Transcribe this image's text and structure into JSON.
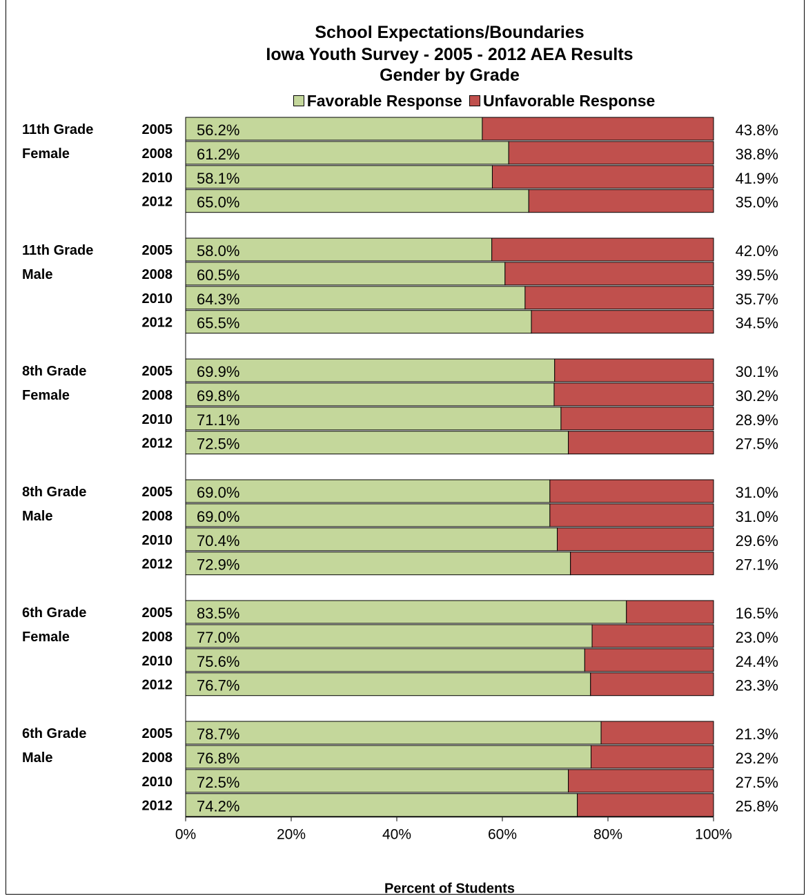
{
  "chart_data": {
    "type": "bar",
    "stacked": true,
    "orientation": "horizontal",
    "title_lines": [
      "School Expectations/Boundaries",
      "Iowa Youth Survey - 2005 - 2012 AEA Results",
      "Gender by Grade"
    ],
    "xlabel": "Percent of Students",
    "xlim": [
      0,
      100
    ],
    "x_ticks": [
      "0%",
      "20%",
      "40%",
      "60%",
      "80%",
      "100%"
    ],
    "legend_position": "top",
    "series": [
      {
        "name": "Favorable Response",
        "color": "#C4D79B"
      },
      {
        "name": "Unfavorable Response",
        "color": "#C0504D"
      }
    ],
    "groups": [
      {
        "label_line1": "11th Grade",
        "label_line2": "Female",
        "rows": [
          {
            "year": "2005",
            "favorable": 56.2,
            "unfavorable": 43.8,
            "fav_label": "56.2%",
            "unfav_label": "43.8%"
          },
          {
            "year": "2008",
            "favorable": 61.2,
            "unfavorable": 38.8,
            "fav_label": "61.2%",
            "unfav_label": "38.8%"
          },
          {
            "year": "2010",
            "favorable": 58.1,
            "unfavorable": 41.9,
            "fav_label": "58.1%",
            "unfav_label": "41.9%"
          },
          {
            "year": "2012",
            "favorable": 65.0,
            "unfavorable": 35.0,
            "fav_label": "65.0%",
            "unfav_label": "35.0%"
          }
        ]
      },
      {
        "label_line1": "11th Grade",
        "label_line2": "Male",
        "rows": [
          {
            "year": "2005",
            "favorable": 58.0,
            "unfavorable": 42.0,
            "fav_label": "58.0%",
            "unfav_label": "42.0%"
          },
          {
            "year": "2008",
            "favorable": 60.5,
            "unfavorable": 39.5,
            "fav_label": "60.5%",
            "unfav_label": "39.5%"
          },
          {
            "year": "2010",
            "favorable": 64.3,
            "unfavorable": 35.7,
            "fav_label": "64.3%",
            "unfav_label": "35.7%"
          },
          {
            "year": "2012",
            "favorable": 65.5,
            "unfavorable": 34.5,
            "fav_label": "65.5%",
            "unfav_label": "34.5%"
          }
        ]
      },
      {
        "label_line1": "8th Grade",
        "label_line2": "Female",
        "rows": [
          {
            "year": "2005",
            "favorable": 69.9,
            "unfavorable": 30.1,
            "fav_label": "69.9%",
            "unfav_label": "30.1%"
          },
          {
            "year": "2008",
            "favorable": 69.8,
            "unfavorable": 30.2,
            "fav_label": "69.8%",
            "unfav_label": "30.2%"
          },
          {
            "year": "2010",
            "favorable": 71.1,
            "unfavorable": 28.9,
            "fav_label": "71.1%",
            "unfav_label": "28.9%"
          },
          {
            "year": "2012",
            "favorable": 72.5,
            "unfavorable": 27.5,
            "fav_label": "72.5%",
            "unfav_label": "27.5%"
          }
        ]
      },
      {
        "label_line1": "8th Grade",
        "label_line2": "Male",
        "rows": [
          {
            "year": "2005",
            "favorable": 69.0,
            "unfavorable": 31.0,
            "fav_label": "69.0%",
            "unfav_label": "31.0%"
          },
          {
            "year": "2008",
            "favorable": 69.0,
            "unfavorable": 31.0,
            "fav_label": "69.0%",
            "unfav_label": "31.0%"
          },
          {
            "year": "2010",
            "favorable": 70.4,
            "unfavorable": 29.6,
            "fav_label": "70.4%",
            "unfav_label": "29.6%"
          },
          {
            "year": "2012",
            "favorable": 72.9,
            "unfavorable": 27.1,
            "fav_label": "72.9%",
            "unfav_label": "27.1%"
          }
        ]
      },
      {
        "label_line1": "6th Grade",
        "label_line2": "Female",
        "rows": [
          {
            "year": "2005",
            "favorable": 83.5,
            "unfavorable": 16.5,
            "fav_label": "83.5%",
            "unfav_label": "16.5%"
          },
          {
            "year": "2008",
            "favorable": 77.0,
            "unfavorable": 23.0,
            "fav_label": "77.0%",
            "unfav_label": "23.0%"
          },
          {
            "year": "2010",
            "favorable": 75.6,
            "unfavorable": 24.4,
            "fav_label": "75.6%",
            "unfav_label": "24.4%"
          },
          {
            "year": "2012",
            "favorable": 76.7,
            "unfavorable": 23.3,
            "fav_label": "76.7%",
            "unfav_label": "23.3%"
          }
        ]
      },
      {
        "label_line1": "6th Grade",
        "label_line2": "Male",
        "rows": [
          {
            "year": "2005",
            "favorable": 78.7,
            "unfavorable": 21.3,
            "fav_label": "78.7%",
            "unfav_label": "21.3%"
          },
          {
            "year": "2008",
            "favorable": 76.8,
            "unfavorable": 23.2,
            "fav_label": "76.8%",
            "unfav_label": "23.2%"
          },
          {
            "year": "2010",
            "favorable": 72.5,
            "unfavorable": 27.5,
            "fav_label": "72.5%",
            "unfav_label": "27.5%"
          },
          {
            "year": "2012",
            "favorable": 74.2,
            "unfavorable": 25.8,
            "fav_label": "74.2%",
            "unfav_label": "25.8%"
          }
        ]
      }
    ]
  }
}
